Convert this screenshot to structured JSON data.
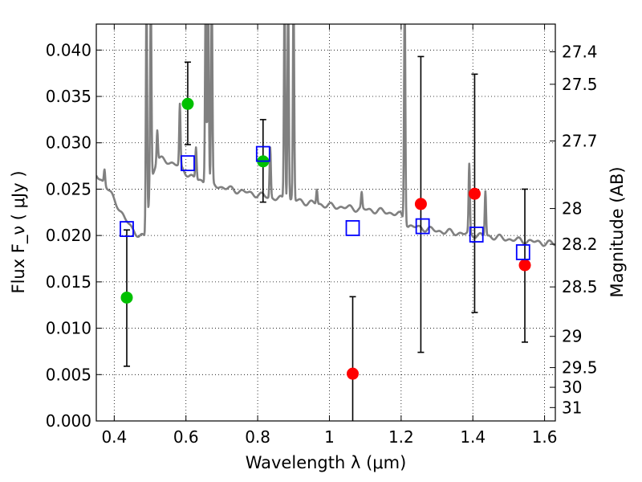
{
  "chart_data": {
    "type": "scatter",
    "xlabel": "Wavelength  λ (μm)",
    "ylabel": "Flux  F_ν  ( μJy )",
    "ylabel_right": "Magnitude (AB)",
    "xlim": [
      0.35,
      1.63
    ],
    "ylim": [
      0.0,
      0.0428
    ],
    "grid": true,
    "grid_style": "dotted",
    "x_ticks": [
      0.4,
      0.6,
      0.8,
      1.0,
      1.2,
      1.4,
      1.6
    ],
    "x_tick_labels": [
      "0.4",
      "0.6",
      "0.8",
      "1",
      "1.2",
      "1.4",
      "1.6"
    ],
    "y_ticks": [
      0.0,
      0.005,
      0.01,
      0.015,
      0.02,
      0.025,
      0.03,
      0.035,
      0.04
    ],
    "y_tick_labels": [
      "0.000",
      "0.005",
      "0.010",
      "0.015",
      "0.020",
      "0.025",
      "0.030",
      "0.035",
      "0.040"
    ],
    "right_ticks": [
      {
        "label": "27.4",
        "mag": 27.4
      },
      {
        "label": "27.5",
        "mag": 27.5
      },
      {
        "label": "27.7",
        "mag": 27.7
      },
      {
        "label": "28",
        "mag": 28.0
      },
      {
        "label": "28.2",
        "mag": 28.2
      },
      {
        "label": "28.5",
        "mag": 28.5
      },
      {
        "label": "29",
        "mag": 29.0
      },
      {
        "label": "29.5",
        "mag": 29.5
      },
      {
        "label": "30",
        "mag": 30.0
      },
      {
        "label": "31",
        "mag": 31.0
      }
    ],
    "series": [
      {
        "kind": "detections",
        "marker": "circle",
        "color": "#00c000",
        "points": [
          {
            "x": 0.435,
            "y": 0.0133,
            "err_lo": 0.0059,
            "err_hi": 0.0206
          },
          {
            "x": 0.605,
            "y": 0.0342,
            "err_lo": 0.0298,
            "err_hi": 0.0387
          },
          {
            "x": 0.815,
            "y": 0.028,
            "err_lo": 0.0236,
            "err_hi": 0.0325
          }
        ]
      },
      {
        "kind": "limits",
        "marker": "circle",
        "color": "#ff0000",
        "points": [
          {
            "x": 1.065,
            "y": 0.0051,
            "err_lo": 0.0,
            "err_hi": 0.0134
          },
          {
            "x": 1.255,
            "y": 0.0234,
            "err_lo": 0.0074,
            "err_hi": 0.0393
          },
          {
            "x": 1.405,
            "y": 0.0245,
            "err_lo": 0.0117,
            "err_hi": 0.0374
          },
          {
            "x": 1.545,
            "y": 0.0168,
            "err_lo": 0.0085,
            "err_hi": 0.025
          }
        ]
      },
      {
        "kind": "model_photometry",
        "marker": "open-square",
        "color": "#0000ff",
        "points": [
          {
            "x": 0.435,
            "y": 0.0207
          },
          {
            "x": 0.605,
            "y": 0.0278
          },
          {
            "x": 0.815,
            "y": 0.0288
          },
          {
            "x": 1.065,
            "y": 0.0208
          },
          {
            "x": 1.26,
            "y": 0.021
          },
          {
            "x": 1.41,
            "y": 0.0201
          },
          {
            "x": 1.54,
            "y": 0.0182
          }
        ]
      }
    ],
    "sed_curve": {
      "color": "#808080",
      "continuum": [
        [
          0.35,
          0.0265
        ],
        [
          0.37,
          0.0258
        ],
        [
          0.39,
          0.0245
        ],
        [
          0.41,
          0.0232
        ],
        [
          0.43,
          0.0218
        ],
        [
          0.45,
          0.0207
        ],
        [
          0.47,
          0.02
        ],
        [
          0.49,
          0.0197
        ],
        [
          0.5,
          0.0255
        ],
        [
          0.52,
          0.0283
        ],
        [
          0.55,
          0.028
        ],
        [
          0.58,
          0.0275
        ],
        [
          0.6,
          0.0268
        ],
        [
          0.62,
          0.0262
        ],
        [
          0.65,
          0.0258
        ],
        [
          0.7,
          0.0252
        ],
        [
          0.75,
          0.0248
        ],
        [
          0.8,
          0.0244
        ],
        [
          0.85,
          0.024
        ],
        [
          0.9,
          0.0238
        ],
        [
          0.95,
          0.0235
        ],
        [
          1.0,
          0.0232
        ],
        [
          1.05,
          0.023
        ],
        [
          1.1,
          0.0228
        ],
        [
          1.15,
          0.0226
        ],
        [
          1.2,
          0.0222
        ],
        [
          1.22,
          0.021
        ],
        [
          1.26,
          0.0208
        ],
        [
          1.3,
          0.0205
        ],
        [
          1.35,
          0.0203
        ],
        [
          1.4,
          0.0201
        ],
        [
          1.45,
          0.0199
        ],
        [
          1.5,
          0.0196
        ],
        [
          1.55,
          0.0194
        ],
        [
          1.6,
          0.0192
        ],
        [
          1.63,
          0.0191
        ]
      ],
      "lines": [
        {
          "x": 0.373,
          "peak": 0.0272
        },
        {
          "x": 0.49,
          "peak": 0.046
        },
        {
          "x": 0.502,
          "peak": 0.046
        },
        {
          "x": 0.52,
          "peak": 0.0315
        },
        {
          "x": 0.583,
          "peak": 0.034
        },
        {
          "x": 0.628,
          "peak": 0.0295
        },
        {
          "x": 0.655,
          "peak": 0.046
        },
        {
          "x": 0.662,
          "peak": 0.046
        },
        {
          "x": 0.672,
          "peak": 0.046
        },
        {
          "x": 0.835,
          "peak": 0.0295
        },
        {
          "x": 0.875,
          "peak": 0.046
        },
        {
          "x": 0.885,
          "peak": 0.046
        },
        {
          "x": 0.9,
          "peak": 0.046
        },
        {
          "x": 0.965,
          "peak": 0.025
        },
        {
          "x": 1.09,
          "peak": 0.0245
        },
        {
          "x": 1.21,
          "peak": 0.046
        },
        {
          "x": 1.39,
          "peak": 0.0275
        },
        {
          "x": 1.435,
          "peak": 0.0248
        }
      ]
    }
  }
}
